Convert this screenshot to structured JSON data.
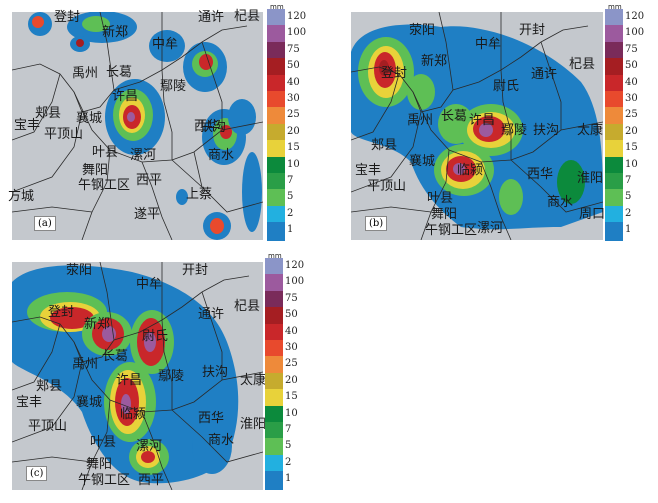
{
  "legend": {
    "unit": "mm",
    "levels": [
      {
        "label": "120",
        "color": "#8b95c8"
      },
      {
        "label": "100",
        "color": "#9c5a9e"
      },
      {
        "label": "75",
        "color": "#7a2b5a"
      },
      {
        "label": "50",
        "color": "#a51e22"
      },
      {
        "label": "40",
        "color": "#c9272a"
      },
      {
        "label": "30",
        "color": "#e84a2d"
      },
      {
        "label": "25",
        "color": "#ee8a3a"
      },
      {
        "label": "20",
        "color": "#c6ab2e"
      },
      {
        "label": "15",
        "color": "#e8d23a"
      },
      {
        "label": "10",
        "color": "#0c8a3c"
      },
      {
        "label": "7",
        "color": "#2a9e47"
      },
      {
        "label": "5",
        "color": "#5ebf55"
      },
      {
        "label": "2",
        "color": "#22b0e0"
      },
      {
        "label": "1",
        "color": "#1f7fc4"
      }
    ]
  },
  "panels": [
    {
      "label": "(a)",
      "places": [
        "登封",
        "新郑",
        "通许",
        "杞县",
        "中牟",
        "禹州",
        "长葛",
        "鄢陵",
        "郏县",
        "襄城",
        "许昌",
        "宝丰",
        "扶沟",
        "平顶山",
        "叶县",
        "漯河",
        "西华",
        "商水",
        "方城",
        "舞阳",
        "午钢工区",
        "西平",
        "遂平",
        "上蔡"
      ]
    },
    {
      "label": "(b)",
      "places": [
        "荥阳",
        "开封",
        "中牟",
        "新郑",
        "登封",
        "尉氏",
        "通许",
        "杞县",
        "禹州",
        "长葛",
        "许昌",
        "鄢陵",
        "扶沟",
        "太康",
        "郏县",
        "襄城",
        "临颍",
        "宝丰",
        "西华",
        "淮阳",
        "平顶山",
        "叶县",
        "商水",
        "周口",
        "舞阳",
        "午钢工区",
        "漯河"
      ]
    },
    {
      "label": "(c)",
      "places": [
        "荥阳",
        "开封",
        "中牟",
        "新郑",
        "登封",
        "尉氏",
        "通许",
        "杞县",
        "禹州",
        "长葛",
        "许昌",
        "鄢陵",
        "扶沟",
        "太康",
        "郏县",
        "襄城",
        "临颍",
        "宝丰",
        "西华",
        "淮阳",
        "平顶山",
        "叶县",
        "漯河",
        "商水",
        "舞阳",
        "午钢工区",
        "西平"
      ]
    }
  ]
}
